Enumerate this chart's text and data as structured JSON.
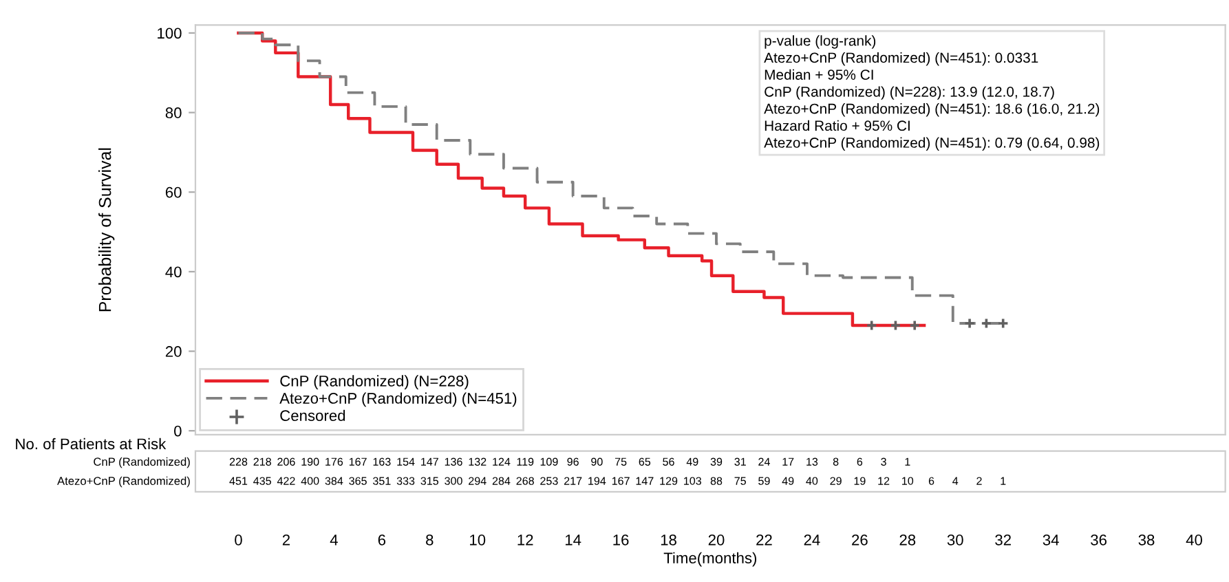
{
  "chart_data": {
    "type": "step",
    "ylabel": "Probability of Survival",
    "xlabel": "Time(months)",
    "xlim": [
      -1.8,
      41.3
    ],
    "ylim": [
      -1,
      102
    ],
    "xticks": [
      0,
      2,
      4,
      6,
      8,
      10,
      12,
      14,
      16,
      18,
      20,
      22,
      24,
      26,
      28,
      30,
      32,
      34,
      36,
      38,
      40
    ],
    "yticks": [
      0,
      20,
      40,
      60,
      80,
      100
    ],
    "grid": false,
    "legend": "bottom left",
    "series": [
      {
        "name": "CnP (Randomized) (N=228)",
        "color": "#e8202a",
        "line_style": "solid",
        "x": [
          0,
          1,
          1.55,
          2.5,
          3.85,
          4.6,
          5.5,
          7.3,
          8.3,
          9.2,
          10.2,
          11.1,
          12,
          13,
          14.4,
          15.3,
          15.9,
          17,
          18,
          19.4,
          19.8,
          20.7,
          22,
          22.8,
          25.7,
          28.7
        ],
        "values": [
          100,
          98,
          95,
          89,
          82,
          78.5,
          75,
          70.5,
          67,
          63.5,
          61,
          59,
          56,
          52,
          49,
          49,
          48,
          46,
          44,
          42.7,
          39,
          35,
          33.5,
          29.5,
          26.5,
          26.5
        ]
      },
      {
        "name": "Atezo+CnP (Randomized) (N=451)",
        "color": "#808080",
        "line_style": "dashed",
        "x": [
          0,
          1,
          1.55,
          2.5,
          3.4,
          4.5,
          5.7,
          7,
          8.3,
          9.7,
          11.1,
          12.5,
          14,
          15.3,
          16.5,
          17.5,
          18.8,
          20,
          21,
          22.4,
          23.8,
          25.3,
          28.2,
          29.9,
          32.2
        ],
        "values": [
          100,
          98.5,
          97,
          93,
          89,
          85,
          81.5,
          77,
          73,
          69.5,
          66,
          62.5,
          59,
          56,
          54,
          52,
          49.6,
          47,
          45,
          42,
          39,
          38.5,
          34,
          27,
          27
        ]
      },
      {
        "name": "Censored",
        "type": "scatter",
        "color": "#606060",
        "marker": "cross",
        "x": [
          26.5,
          27.5,
          28.3,
          30.6,
          31.3,
          32
        ],
        "values": [
          26.5,
          26.5,
          26.5,
          27,
          27,
          27
        ]
      }
    ],
    "annotations": [
      "p-value (log-rank)",
      "Atezo+CnP (Randomized) (N=451): 0.0331",
      "Median + 95% CI",
      "CnP (Randomized) (N=228): 13.9 (12.0, 18.7)",
      "Atezo+CnP (Randomized) (N=451): 18.6 (16.0, 21.2)",
      "Hazard Ratio + 95% CI",
      "Atezo+CnP (Randomized) (N=451): 0.79 (0.64, 0.98)",
      "No. of Patients at Risk",
      "CnP (Randomized)",
      "228 218 206 190 176 167 163 154 147 136 132 124 119 109 96 90 75 65 56 49 39 31 24 17 13 8 6 3 1",
      "Atezo+CnP (Randomized)",
      "451 435 422 400 384 365 351 333 315 300 294 284 268 253 217 194 167 147 129 103 88 75 59 49 40 29 19 12 10 6 4 2 1"
    ]
  }
}
